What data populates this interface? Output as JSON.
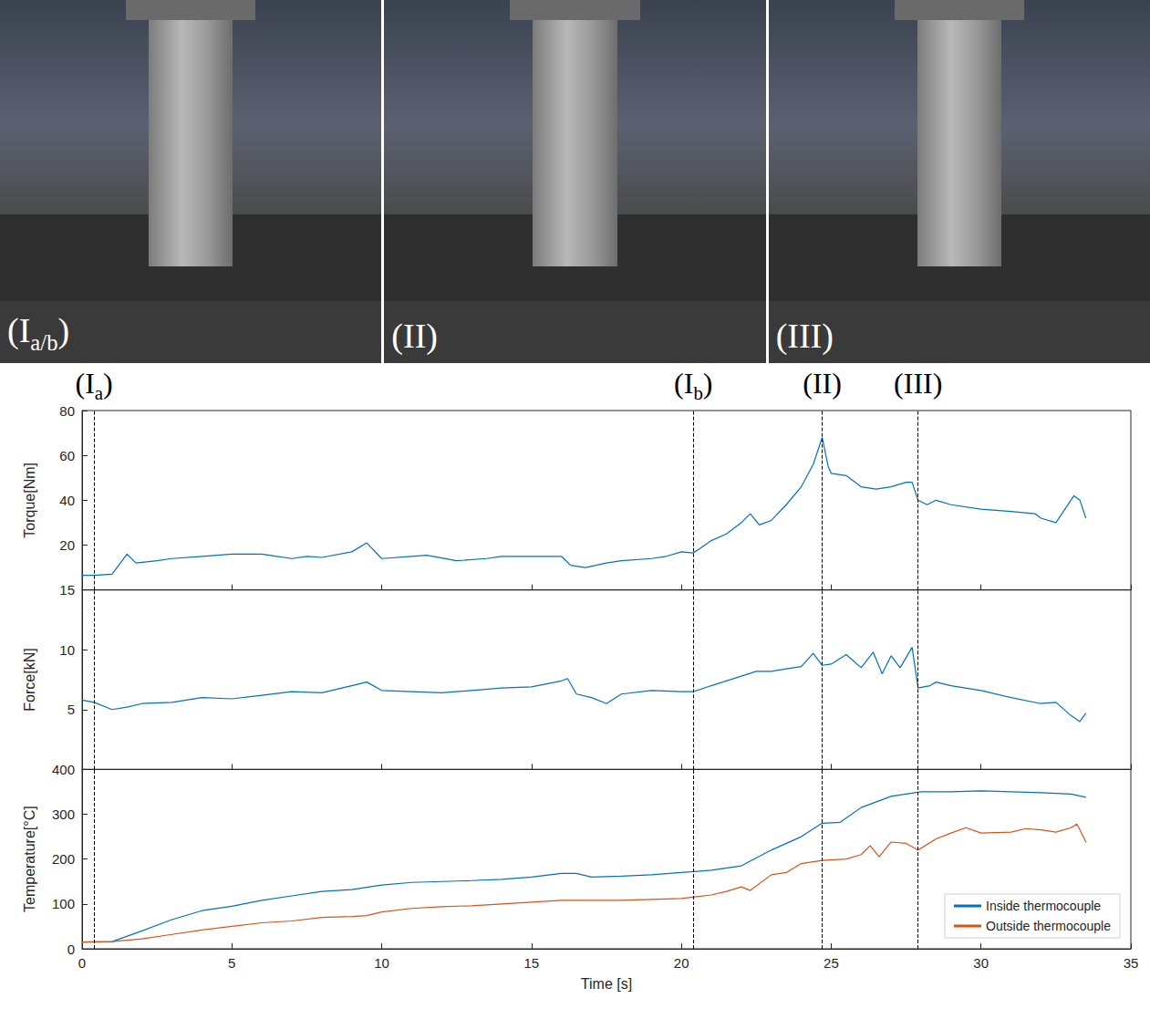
{
  "photos": [
    {
      "label": {
        "prefix": "(I",
        "sub": "a/b",
        "suffix": ")"
      }
    },
    {
      "label": {
        "prefix": "(II",
        "sub": "",
        "suffix": ")"
      }
    },
    {
      "label": {
        "prefix": "(III",
        "sub": "",
        "suffix": ")"
      }
    }
  ],
  "markers": [
    {
      "x": 0.4,
      "label": {
        "prefix": "(I",
        "sub": "a",
        "suffix": ")"
      }
    },
    {
      "x": 20.4,
      "label": {
        "prefix": "(I",
        "sub": "b",
        "suffix": ")"
      }
    },
    {
      "x": 24.7,
      "label": {
        "prefix": "(II",
        "sub": "",
        "suffix": ")"
      }
    },
    {
      "x": 27.9,
      "label": {
        "prefix": "(III",
        "sub": "",
        "suffix": ")"
      }
    }
  ],
  "chart_data": [
    {
      "type": "line",
      "ylabel": "Torque[Nm]",
      "xlim": [
        0,
        35
      ],
      "xticks": [
        0,
        5,
        10,
        15,
        20,
        25,
        30,
        35
      ],
      "ylim": [
        0,
        80
      ],
      "yticks": [
        20,
        40,
        60,
        80
      ],
      "grid": false,
      "tick_labels": "y",
      "line_style": "dashed",
      "series": [
        {
          "color": "#0072BD",
          "x": [
            0,
            0.4,
            1.0,
            1.5,
            1.8,
            2.5,
            3,
            4,
            5,
            6,
            6.5,
            7,
            7.5,
            8,
            9,
            9.5,
            10,
            11,
            11.5,
            12.5,
            13.5,
            14,
            15,
            16,
            16.3,
            16.8,
            17.5,
            18,
            19,
            19.5,
            20,
            20.4,
            21,
            21.5,
            22,
            22.3,
            22.6,
            23,
            23.5,
            24,
            24.4,
            24.7,
            24.9,
            25,
            25.5,
            26,
            26.5,
            27,
            27.5,
            27.7,
            27.9,
            28.2,
            28.5,
            29,
            30,
            31,
            31.8,
            32,
            32.5,
            32.8,
            33.1,
            33.3,
            33.5
          ],
          "values": [
            6.5,
            6.5,
            7,
            16,
            12,
            13,
            14,
            15,
            16,
            16,
            15,
            14,
            15,
            14.5,
            17,
            21,
            14,
            15,
            15.5,
            13,
            14,
            15,
            15,
            15,
            11,
            10,
            12,
            13,
            14,
            15,
            17,
            16.5,
            22,
            25,
            30,
            34,
            29,
            31,
            38,
            46,
            56,
            68,
            55,
            52,
            51,
            46,
            45,
            46,
            48,
            48,
            40,
            38,
            40,
            38,
            36,
            35,
            34,
            32,
            30,
            36,
            42,
            40,
            32
          ]
        }
      ]
    },
    {
      "type": "line",
      "ylabel": "Force[kN]",
      "xlim": [
        0,
        35
      ],
      "xticks": [
        0,
        5,
        10,
        15,
        20,
        25,
        30,
        35
      ],
      "ylim": [
        0,
        15
      ],
      "yticks": [
        5,
        10,
        15
      ],
      "grid": false,
      "tick_labels": "y",
      "line_style": "dashed",
      "series": [
        {
          "color": "#0072BD",
          "x": [
            0,
            0.4,
            1,
            1.5,
            2,
            3,
            4,
            5,
            6,
            7,
            8,
            9,
            9.5,
            10,
            11,
            12,
            13,
            14,
            15,
            16,
            16.2,
            16.5,
            17,
            17.5,
            18,
            19,
            20,
            20.4,
            21,
            22,
            22.5,
            23,
            23.5,
            24,
            24.4,
            24.7,
            25,
            25.5,
            26,
            26.4,
            26.7,
            27,
            27.3,
            27.7,
            27.9,
            28.3,
            28.5,
            29,
            30,
            31,
            32,
            32.5,
            33,
            33.3,
            33.5
          ],
          "values": [
            5.8,
            5.6,
            5.0,
            5.2,
            5.5,
            5.6,
            6.0,
            5.9,
            6.2,
            6.5,
            6.4,
            7.0,
            7.3,
            6.6,
            6.5,
            6.4,
            6.6,
            6.8,
            6.9,
            7.4,
            7.6,
            6.3,
            6.0,
            5.5,
            6.3,
            6.6,
            6.5,
            6.5,
            7.0,
            7.8,
            8.2,
            8.2,
            8.4,
            8.6,
            9.7,
            8.7,
            8.8,
            9.6,
            8.5,
            9.8,
            8.0,
            9.5,
            8.5,
            10.2,
            6.8,
            7.0,
            7.3,
            7.0,
            6.6,
            6.0,
            5.5,
            5.6,
            4.5,
            4.0,
            4.7
          ]
        }
      ]
    },
    {
      "type": "line",
      "ylabel": "Temperature[°C]",
      "xlabel": "Time [s]",
      "xlim": [
        0,
        35
      ],
      "xticks": [
        0,
        5,
        10,
        15,
        20,
        25,
        30,
        35
      ],
      "ylim": [
        0,
        400
      ],
      "yticks": [
        0,
        100,
        200,
        300,
        400
      ],
      "grid": false,
      "tick_labels": true,
      "legend": "lower right",
      "line_style": "dashed",
      "series": [
        {
          "name": "Inside thermocouple",
          "color": "#0072BD",
          "x": [
            0,
            1,
            2,
            3,
            4,
            5,
            6,
            7,
            8,
            9,
            10,
            11,
            12,
            13,
            14,
            15,
            16,
            16.5,
            17,
            18,
            19,
            20,
            21,
            22,
            23,
            24,
            24.7,
            25.3,
            26,
            27,
            28,
            29,
            30,
            31,
            32,
            33,
            33.5
          ],
          "values": [
            15,
            16,
            40,
            65,
            85,
            95,
            108,
            118,
            128,
            132,
            142,
            148,
            150,
            152,
            155,
            160,
            168,
            168,
            160,
            162,
            165,
            170,
            175,
            185,
            220,
            250,
            280,
            282,
            315,
            340,
            350,
            350,
            352,
            350,
            348,
            345,
            338
          ]
        },
        {
          "name": "Outside thermocouple",
          "color": "#D95319",
          "x": [
            0,
            1,
            2,
            3,
            4,
            5,
            6,
            7,
            8,
            9,
            9.5,
            10,
            11,
            12,
            13,
            14,
            15,
            16,
            17,
            18,
            19,
            20,
            21,
            21.5,
            22,
            22.3,
            23,
            23.5,
            24,
            24.7,
            25.5,
            26,
            26.3,
            26.6,
            27,
            27.5,
            27.9,
            28.5,
            29,
            29.5,
            30,
            31,
            31.5,
            32,
            32.5,
            33,
            33.2,
            33.5
          ],
          "values": [
            15,
            16,
            22,
            32,
            42,
            50,
            58,
            62,
            70,
            72,
            74,
            82,
            90,
            94,
            96,
            100,
            104,
            108,
            108,
            108,
            110,
            112,
            120,
            128,
            138,
            130,
            165,
            170,
            190,
            197,
            200,
            210,
            230,
            205,
            238,
            235,
            220,
            245,
            258,
            270,
            258,
            260,
            268,
            265,
            260,
            270,
            278,
            238
          ]
        }
      ]
    }
  ]
}
